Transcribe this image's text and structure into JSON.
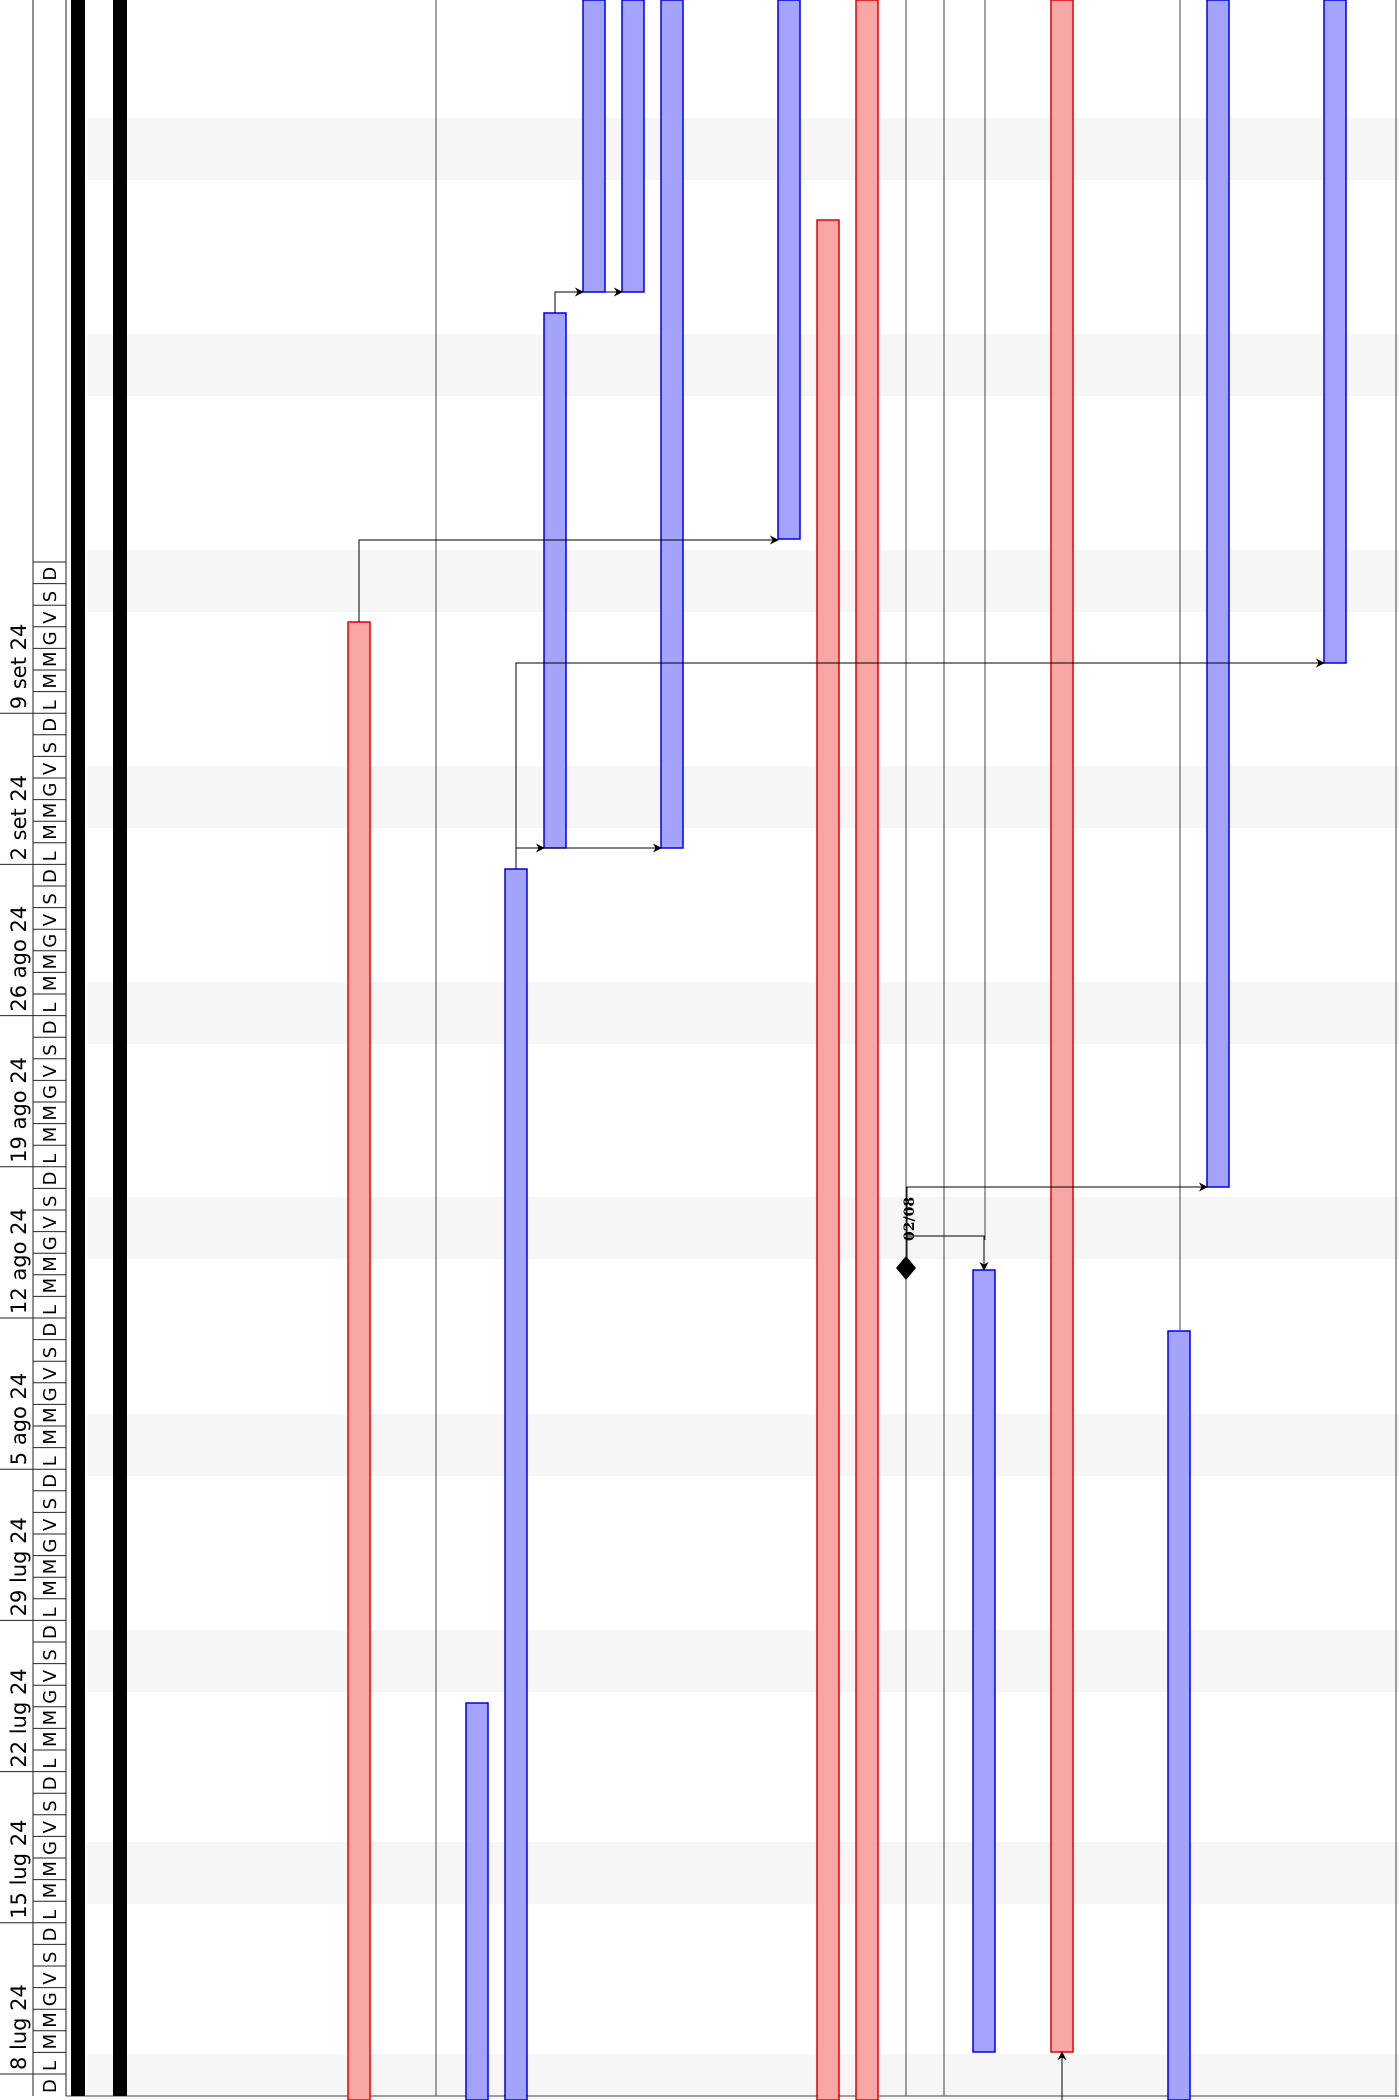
{
  "gantt": {
    "weeks": [
      "8 lug 24",
      "15 lug 24",
      "22 lug 24",
      "29 lug 24",
      "5 ago 24",
      "12 ago 24",
      "19 ago 24",
      "26 ago 24",
      "2 set 24",
      "9 set 24"
    ],
    "day_letters": [
      "L",
      "M",
      "M",
      "G",
      "V",
      "S",
      "D"
    ],
    "first_day_letter": "D",
    "milestone_label": "02/08",
    "colors": {
      "task_fill": "#a3a3fb",
      "task_stroke": "#0000e6",
      "summary_fill": "#f9a6a6",
      "summary_stroke": "#e60000",
      "weekend_band": "#f6f6f6",
      "today_line": "#000000"
    }
  }
}
